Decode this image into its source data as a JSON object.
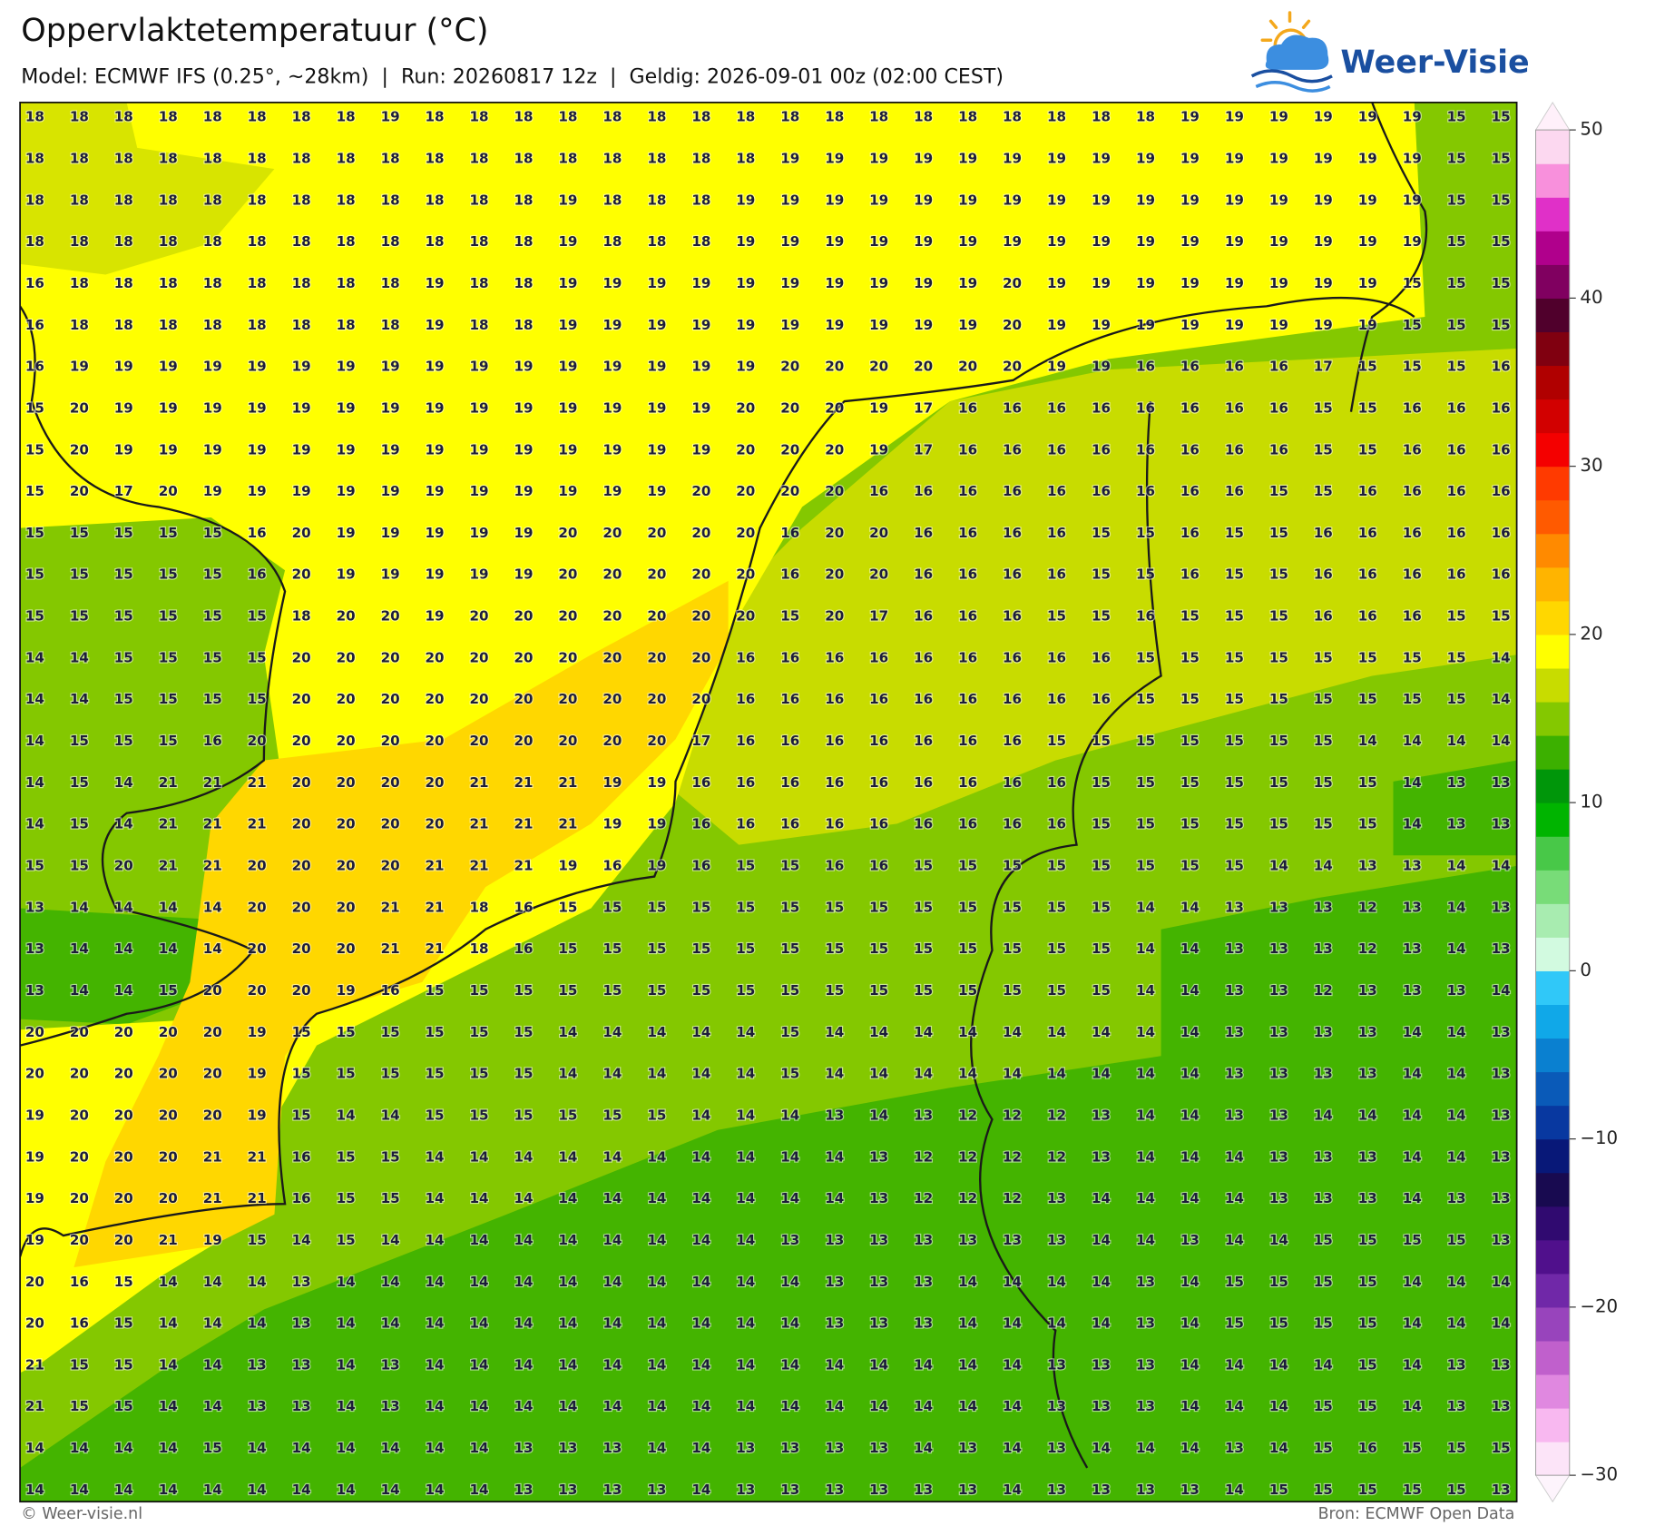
{
  "header": {
    "title": "Oppervlaktetemperatuur (°C)",
    "subtitle": "Model: ECMWF IFS (0.25°, ~28km)  |  Run: 20260817 12z  |  Geldig: 2026-09-01 00z (02:00 CEST)"
  },
  "logo": {
    "text": "Weer-Visie"
  },
  "grid": {
    "rows": [
      [
        18,
        18,
        18,
        18,
        18,
        18,
        18,
        18,
        19,
        18,
        18,
        18,
        18,
        18,
        18,
        18,
        18,
        18,
        18,
        18,
        18,
        18,
        18,
        18,
        18,
        18,
        19,
        19,
        19,
        19,
        19,
        19,
        15,
        15
      ],
      [
        18,
        18,
        18,
        18,
        18,
        18,
        18,
        18,
        18,
        18,
        18,
        18,
        18,
        18,
        18,
        18,
        18,
        19,
        19,
        19,
        19,
        19,
        19,
        19,
        19,
        19,
        19,
        19,
        19,
        19,
        19,
        19,
        15,
        15
      ],
      [
        18,
        18,
        18,
        18,
        18,
        18,
        18,
        18,
        18,
        18,
        18,
        18,
        19,
        18,
        18,
        18,
        19,
        19,
        19,
        19,
        19,
        19,
        19,
        19,
        19,
        19,
        19,
        19,
        19,
        19,
        19,
        19,
        15,
        15
      ],
      [
        18,
        18,
        18,
        18,
        18,
        18,
        18,
        18,
        18,
        18,
        18,
        18,
        19,
        18,
        18,
        18,
        19,
        19,
        19,
        19,
        19,
        19,
        19,
        19,
        19,
        19,
        19,
        19,
        19,
        19,
        19,
        19,
        15,
        15
      ],
      [
        16,
        18,
        18,
        18,
        18,
        18,
        18,
        18,
        18,
        19,
        18,
        18,
        19,
        19,
        19,
        19,
        19,
        19,
        19,
        19,
        19,
        19,
        20,
        19,
        19,
        19,
        19,
        19,
        19,
        19,
        19,
        15,
        15,
        15
      ],
      [
        16,
        18,
        18,
        18,
        18,
        18,
        18,
        18,
        18,
        19,
        18,
        18,
        19,
        19,
        19,
        19,
        19,
        19,
        19,
        19,
        19,
        19,
        20,
        19,
        19,
        19,
        19,
        19,
        19,
        19,
        19,
        15,
        15,
        15
      ],
      [
        16,
        19,
        19,
        19,
        19,
        19,
        19,
        19,
        19,
        19,
        19,
        19,
        19,
        19,
        19,
        19,
        19,
        20,
        20,
        20,
        20,
        20,
        20,
        19,
        19,
        16,
        16,
        16,
        16,
        17,
        15,
        15,
        15,
        16
      ],
      [
        15,
        20,
        19,
        19,
        19,
        19,
        19,
        19,
        19,
        19,
        19,
        19,
        19,
        19,
        19,
        19,
        20,
        20,
        20,
        19,
        17,
        16,
        16,
        16,
        16,
        16,
        16,
        16,
        16,
        15,
        15,
        16,
        16,
        16
      ],
      [
        15,
        20,
        19,
        19,
        19,
        19,
        19,
        19,
        19,
        19,
        19,
        19,
        19,
        19,
        19,
        19,
        20,
        20,
        20,
        19,
        17,
        16,
        16,
        16,
        16,
        16,
        16,
        16,
        16,
        15,
        15,
        16,
        16,
        16
      ],
      [
        15,
        20,
        17,
        20,
        19,
        19,
        19,
        19,
        19,
        19,
        19,
        19,
        19,
        19,
        19,
        20,
        20,
        20,
        20,
        16,
        16,
        16,
        16,
        16,
        16,
        16,
        16,
        16,
        15,
        15,
        16,
        16,
        16,
        16
      ],
      [
        15,
        15,
        15,
        15,
        15,
        16,
        20,
        19,
        19,
        19,
        19,
        19,
        20,
        20,
        20,
        20,
        20,
        16,
        20,
        20,
        16,
        16,
        16,
        16,
        15,
        15,
        16,
        15,
        15,
        16,
        16,
        16,
        16,
        16
      ],
      [
        15,
        15,
        15,
        15,
        15,
        16,
        20,
        19,
        19,
        19,
        19,
        19,
        20,
        20,
        20,
        20,
        20,
        16,
        20,
        20,
        16,
        16,
        16,
        16,
        15,
        15,
        16,
        15,
        15,
        16,
        16,
        16,
        16,
        16
      ],
      [
        15,
        15,
        15,
        15,
        15,
        15,
        18,
        20,
        20,
        19,
        20,
        20,
        20,
        20,
        20,
        20,
        20,
        15,
        20,
        17,
        16,
        16,
        16,
        15,
        15,
        16,
        15,
        15,
        15,
        16,
        16,
        16,
        15,
        15
      ],
      [
        14,
        14,
        15,
        15,
        15,
        15,
        20,
        20,
        20,
        20,
        20,
        20,
        20,
        20,
        20,
        20,
        16,
        16,
        16,
        16,
        16,
        16,
        16,
        16,
        16,
        15,
        15,
        15,
        15,
        15,
        15,
        15,
        15,
        14
      ],
      [
        14,
        14,
        15,
        15,
        15,
        15,
        20,
        20,
        20,
        20,
        20,
        20,
        20,
        20,
        20,
        20,
        16,
        16,
        16,
        16,
        16,
        16,
        16,
        16,
        16,
        15,
        15,
        15,
        15,
        15,
        15,
        15,
        15,
        14
      ],
      [
        14,
        15,
        15,
        15,
        16,
        20,
        20,
        20,
        20,
        20,
        20,
        20,
        20,
        20,
        20,
        17,
        16,
        16,
        16,
        16,
        16,
        16,
        16,
        15,
        15,
        15,
        15,
        15,
        15,
        15,
        14,
        14,
        14,
        14
      ],
      [
        14,
        15,
        14,
        21,
        21,
        21,
        20,
        20,
        20,
        20,
        21,
        21,
        21,
        19,
        19,
        16,
        16,
        16,
        16,
        16,
        16,
        16,
        16,
        16,
        15,
        15,
        15,
        15,
        15,
        15,
        15,
        14,
        13,
        13
      ],
      [
        14,
        15,
        14,
        21,
        21,
        21,
        20,
        20,
        20,
        20,
        21,
        21,
        21,
        19,
        19,
        16,
        16,
        16,
        16,
        16,
        16,
        16,
        16,
        16,
        15,
        15,
        15,
        15,
        15,
        15,
        15,
        14,
        13,
        13
      ],
      [
        15,
        15,
        20,
        21,
        21,
        20,
        20,
        20,
        20,
        21,
        21,
        21,
        19,
        16,
        19,
        16,
        15,
        15,
        16,
        16,
        15,
        15,
        15,
        15,
        15,
        15,
        15,
        15,
        14,
        14,
        13,
        13,
        14,
        14
      ],
      [
        13,
        14,
        14,
        14,
        14,
        20,
        20,
        20,
        21,
        21,
        18,
        16,
        15,
        15,
        15,
        15,
        15,
        15,
        15,
        15,
        15,
        15,
        15,
        15,
        15,
        14,
        14,
        13,
        13,
        13,
        12,
        13,
        14,
        13
      ],
      [
        13,
        14,
        14,
        14,
        14,
        20,
        20,
        20,
        21,
        21,
        18,
        16,
        15,
        15,
        15,
        15,
        15,
        15,
        15,
        15,
        15,
        15,
        15,
        15,
        15,
        14,
        14,
        13,
        13,
        13,
        12,
        13,
        14,
        13
      ],
      [
        13,
        14,
        14,
        15,
        20,
        20,
        20,
        19,
        16,
        15,
        15,
        15,
        15,
        15,
        15,
        15,
        15,
        15,
        15,
        15,
        15,
        15,
        15,
        15,
        15,
        14,
        14,
        13,
        13,
        12,
        13,
        13,
        13,
        14
      ],
      [
        20,
        20,
        20,
        20,
        20,
        19,
        15,
        15,
        15,
        15,
        15,
        15,
        14,
        14,
        14,
        14,
        14,
        15,
        14,
        14,
        14,
        14,
        14,
        14,
        14,
        14,
        14,
        13,
        13,
        13,
        13,
        14,
        14,
        13
      ],
      [
        20,
        20,
        20,
        20,
        20,
        19,
        15,
        15,
        15,
        15,
        15,
        15,
        14,
        14,
        14,
        14,
        14,
        15,
        14,
        14,
        14,
        14,
        14,
        14,
        14,
        14,
        14,
        13,
        13,
        13,
        13,
        14,
        14,
        13
      ],
      [
        19,
        20,
        20,
        20,
        20,
        19,
        15,
        14,
        14,
        15,
        15,
        15,
        15,
        15,
        15,
        14,
        14,
        14,
        13,
        14,
        13,
        12,
        12,
        12,
        13,
        14,
        14,
        13,
        13,
        14,
        14,
        14,
        14,
        13
      ],
      [
        19,
        20,
        20,
        20,
        21,
        21,
        16,
        15,
        15,
        14,
        14,
        14,
        14,
        14,
        14,
        14,
        14,
        14,
        14,
        13,
        12,
        12,
        12,
        12,
        13,
        14,
        14,
        14,
        13,
        13,
        13,
        14,
        14,
        13
      ],
      [
        19,
        20,
        20,
        20,
        21,
        21,
        16,
        15,
        15,
        14,
        14,
        14,
        14,
        14,
        14,
        14,
        14,
        14,
        14,
        13,
        12,
        12,
        12,
        13,
        14,
        14,
        14,
        14,
        13,
        13,
        13,
        14,
        13,
        13
      ],
      [
        19,
        20,
        20,
        21,
        19,
        15,
        14,
        15,
        14,
        14,
        14,
        14,
        14,
        14,
        14,
        14,
        14,
        13,
        13,
        13,
        13,
        13,
        13,
        13,
        14,
        14,
        13,
        14,
        14,
        15,
        15,
        15,
        15,
        13
      ],
      [
        20,
        16,
        15,
        14,
        14,
        14,
        13,
        14,
        14,
        14,
        14,
        14,
        14,
        14,
        14,
        14,
        14,
        14,
        13,
        13,
        13,
        14,
        14,
        14,
        14,
        13,
        14,
        15,
        15,
        15,
        15,
        14,
        14,
        14
      ],
      [
        20,
        16,
        15,
        14,
        14,
        14,
        13,
        14,
        14,
        14,
        14,
        14,
        14,
        14,
        14,
        14,
        14,
        14,
        13,
        13,
        13,
        14,
        14,
        14,
        14,
        13,
        14,
        15,
        15,
        15,
        15,
        14,
        14,
        14
      ],
      [
        21,
        15,
        15,
        14,
        14,
        13,
        13,
        14,
        13,
        14,
        14,
        14,
        14,
        14,
        14,
        14,
        14,
        14,
        14,
        14,
        14,
        14,
        14,
        13,
        13,
        13,
        14,
        14,
        14,
        14,
        15,
        14,
        13,
        13
      ],
      [
        21,
        15,
        15,
        14,
        14,
        13,
        13,
        14,
        13,
        14,
        14,
        14,
        14,
        14,
        14,
        14,
        14,
        14,
        14,
        14,
        14,
        14,
        14,
        13,
        13,
        13,
        14,
        14,
        14,
        15,
        15,
        14,
        13,
        13
      ],
      [
        14,
        14,
        14,
        14,
        15,
        14,
        14,
        14,
        14,
        14,
        14,
        13,
        13,
        13,
        14,
        14,
        13,
        13,
        13,
        13,
        14,
        13,
        14,
        13,
        14,
        14,
        14,
        13,
        14,
        15,
        16,
        15,
        15,
        15
      ],
      [
        14,
        14,
        14,
        14,
        14,
        14,
        14,
        14,
        14,
        14,
        14,
        13,
        13,
        13,
        13,
        14,
        13,
        13,
        13,
        13,
        13,
        13,
        14,
        13,
        13,
        13,
        13,
        14,
        15,
        15,
        15,
        15,
        15,
        13
      ]
    ]
  },
  "colorbar": {
    "lim": [
      -30,
      50
    ],
    "ticks": [
      50,
      40,
      30,
      20,
      10,
      0,
      {
        "value": -10,
        "label": "−10"
      },
      {
        "value": -20,
        "label": "−20"
      },
      {
        "value": -30,
        "label": "−30"
      }
    ],
    "colors": [
      "#fce4f8",
      "#f8b8f0",
      "#e088e0",
      "#c060cc",
      "#9844bc",
      "#7028a8",
      "#50108c",
      "#300a70",
      "#180a50",
      "#081878",
      "#0838a0",
      "#0a5ab8",
      "#0a80d0",
      "#10a8e8",
      "#30c8f8",
      "#d2fae0",
      "#a8ecb0",
      "#78dc78",
      "#48c848",
      "#00b400",
      "#00960a",
      "#3cb000",
      "#84c800",
      "#c8dc00",
      "#ffff00",
      "#ffd700",
      "#ffb400",
      "#ff8a00",
      "#ff5a00",
      "#ff3a00",
      "#f40000",
      "#d20000",
      "#b00000",
      "#800010",
      "#50002c",
      "#800060",
      "#b0008c",
      "#e030c8",
      "#f890dc",
      "#fcd8f0"
    ]
  },
  "footer": {
    "copyright": "© Weer-visie.nl",
    "source": "Bron: ECMWF Open Data"
  }
}
